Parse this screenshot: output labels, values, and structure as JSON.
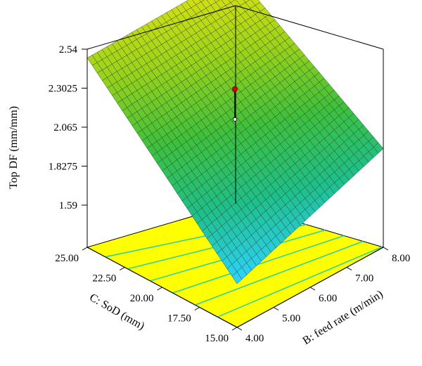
{
  "chart_data": {
    "type": "surface3d",
    "z_axis": {
      "label": "Top DF (mm/mm)",
      "ticks": [
        "1.59",
        "1.8275",
        "2.065",
        "2.3025",
        "2.54"
      ],
      "range": [
        1.59,
        2.54
      ]
    },
    "x_axis": {
      "label": "B: feed rate (m/min)",
      "ticks": [
        "4.00",
        "5.00",
        "6.00",
        "7.00",
        "8.00"
      ],
      "range": [
        4.0,
        8.0
      ]
    },
    "y_axis": {
      "label": "C: SoD (mm)",
      "ticks": [
        "15.00",
        "17.50",
        "20.00",
        "22.50",
        "25.00"
      ],
      "range": [
        15.0,
        25.0
      ]
    },
    "surface_corners": [
      {
        "feed_rate": 4.0,
        "sod": 15.0,
        "top_df": 1.59
      },
      {
        "feed_rate": 8.0,
        "sod": 15.0,
        "top_df": 1.87
      },
      {
        "feed_rate": 4.0,
        "sod": 25.0,
        "top_df": 2.33
      },
      {
        "feed_rate": 8.0,
        "sod": 25.0,
        "top_df": 2.54
      }
    ],
    "design_point": {
      "top_df": 2.25,
      "predicted": 2.07
    },
    "colormap": [
      "#2fd3ff",
      "#1fbf8a",
      "#3fc03a",
      "#9ad21a",
      "#d8e012"
    ],
    "floor_color": "#ffff00",
    "contour_color": "#2fd3a0"
  }
}
